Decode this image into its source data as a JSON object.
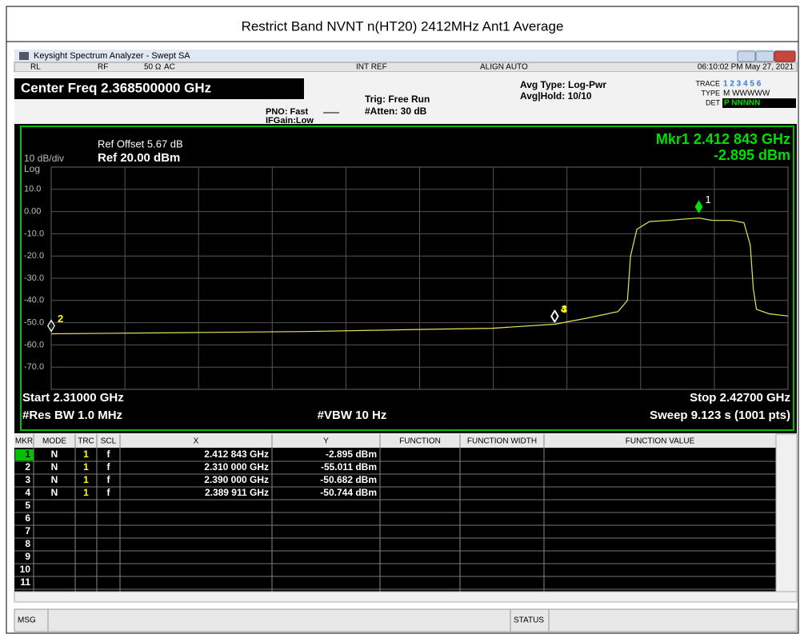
{
  "title": "Restrict Band NVNT n(HT20) 2412MHz Ant1 Average",
  "window": {
    "title": "Keysight Spectrum Analyzer - Swept SA"
  },
  "status_bar": [
    "RL",
    "RF",
    "50 Ω",
    "AC",
    "INT REF",
    "ALIGN AUTO",
    "06:10:02 PM May 27, 2021"
  ],
  "settings": {
    "center_freq": "Center Freq 2.368500000 GHz",
    "pno": "PNO: Fast",
    "ifgain": "IFGain:Low",
    "trig": "Trig: Free Run",
    "atten": "#Atten: 30 dB",
    "avg_type": "Avg Type: Log-Pwr",
    "avg_hold": "Avg|Hold: 10/10",
    "trace_label": "TRACE",
    "trace_nums": "1 2 3 4 5 6",
    "type_label": "TYPE",
    "type_vals": "M WWWWW",
    "det_label": "DET",
    "det_vals": "P NNNNN"
  },
  "plot": {
    "scale": "10 dB/div",
    "scale_type": "Log",
    "ref_offset": "Ref Offset 5.67 dB",
    "ref_level": "Ref 20.00 dBm",
    "marker_readout": [
      "Mkr1 2.412 843 GHz",
      "-2.895 dBm"
    ],
    "start": "Start 2.31000 GHz",
    "stop": "Stop 2.42700 GHz",
    "rbw": "#Res BW 1.0 MHz",
    "vbw": "#VBW 10 Hz",
    "sweep": "Sweep  9.123 s (1001 pts)",
    "xlim": [
      2.31,
      2.427
    ],
    "ylim": [
      -80,
      20
    ],
    "yticks": [
      {
        "value": 10,
        "label": "10.0"
      },
      {
        "value": 0,
        "label": "0.00"
      },
      {
        "value": -10,
        "label": "-10.0"
      },
      {
        "value": -20,
        "label": "-20.0"
      },
      {
        "value": -30,
        "label": "-30.0"
      },
      {
        "value": -40,
        "label": "-40.0"
      },
      {
        "value": -50,
        "label": "-50.0"
      },
      {
        "value": -60,
        "label": "-60.0"
      },
      {
        "value": -70,
        "label": "-70.0"
      }
    ],
    "grid": true,
    "trace": {
      "color": "#e6e65c",
      "x": [
        2.31,
        2.33,
        2.35,
        2.37,
        2.38,
        2.39,
        2.395,
        2.4,
        2.4015,
        2.402,
        2.403,
        2.405,
        2.408,
        2.41,
        2.412843,
        2.415,
        2.418,
        2.42,
        2.421,
        2.4215,
        2.422,
        2.424,
        2.427
      ],
      "y": [
        -55,
        -54.5,
        -54,
        -53,
        -52.5,
        -50.7,
        -48,
        -45,
        -40,
        -20,
        -8,
        -4.5,
        -4,
        -3.5,
        -2.9,
        -4,
        -4,
        -5,
        -15,
        -35,
        -44,
        -46,
        -47
      ]
    },
    "markers": [
      {
        "label": "1",
        "x": 2.412843,
        "y": -2.895,
        "color": "#00e000"
      },
      {
        "label": "2",
        "x": 2.31,
        "y": -55.011,
        "color": "#ffffff"
      },
      {
        "label": "3",
        "x": 2.39,
        "y": -50.682,
        "color": "#ffffff"
      },
      {
        "label": "4",
        "x": 2.389911,
        "y": -50.744,
        "color": "#ffffff"
      }
    ]
  },
  "table": {
    "headers": [
      "MKR",
      "MODE",
      "TRC",
      "SCL",
      "X",
      "Y",
      "FUNCTION",
      "FUNCTION WIDTH",
      "FUNCTION VALUE"
    ],
    "rows": [
      [
        "1",
        "N",
        "1",
        "f",
        "2.412 843 GHz",
        "-2.895 dBm"
      ],
      [
        "2",
        "N",
        "1",
        "f",
        "2.310 000 GHz",
        "-55.011 dBm"
      ],
      [
        "3",
        "N",
        "1",
        "f",
        "2.390 000 GHz",
        "-50.682 dBm"
      ],
      [
        "4",
        "N",
        "1",
        "f",
        "2.389 911 GHz",
        "-50.744 dBm"
      ],
      [
        "5"
      ],
      [
        "6"
      ],
      [
        "7"
      ],
      [
        "8"
      ],
      [
        "9"
      ],
      [
        "10"
      ],
      [
        "11"
      ]
    ]
  },
  "msg": "MSG",
  "status": "STATUS"
}
